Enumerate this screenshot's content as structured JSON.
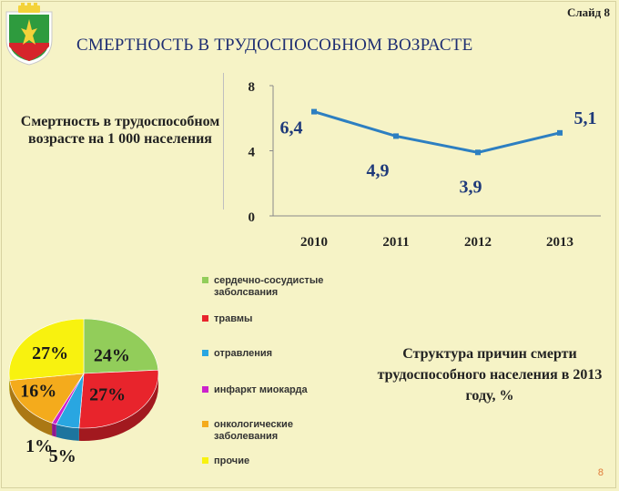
{
  "header": {
    "slide_number": "Слайд 8",
    "title": "СМЕРТНОСТЬ В ТРУДОСПОСОБНОМ ВОЗРАСТЕ"
  },
  "colors": {
    "background": "#f6f3c6",
    "title": "#1f2f72",
    "line": "#2d7fc1",
    "line_labels": "#1f3a7a"
  },
  "chart_data": [
    {
      "type": "line",
      "caption": "Смертность в трудоспособном возрасте на 1 000 населения",
      "categories": [
        "2010",
        "2011",
        "2012",
        "2013"
      ],
      "series": [
        {
          "values": [
            6.4,
            4.9,
            3.9,
            5.1
          ],
          "labels": [
            "6,4",
            "4,9",
            "3,9",
            "5,1"
          ]
        }
      ],
      "yticks": [
        "8",
        "4",
        "0"
      ],
      "ylim": [
        0,
        8
      ],
      "grid": false,
      "legend": "none"
    },
    {
      "type": "pie",
      "caption": "Структура причин смерти трудоспособного населения в 2013 году, %",
      "slices": [
        {
          "name": "сердечно-сосудистые заболсвания",
          "value": 24,
          "label": "24%",
          "color": "#92cd5a"
        },
        {
          "name": "травмы",
          "value": 27,
          "label": "27%",
          "color": "#e8242c"
        },
        {
          "name": "отравления",
          "value": 5,
          "label": "5%",
          "color": "#29a6e1"
        },
        {
          "name": "инфаркт миокарда",
          "value": 1,
          "label": "1%",
          "color": "#cc22cc"
        },
        {
          "name": "онкологические заболевания",
          "value": 16,
          "label": "16%",
          "color": "#f4ab1c"
        },
        {
          "name": "прочие",
          "value": 27,
          "label": "27%",
          "color": "#f8f20f"
        }
      ],
      "legend": "right"
    }
  ],
  "footer": {
    "page_number": "8"
  }
}
